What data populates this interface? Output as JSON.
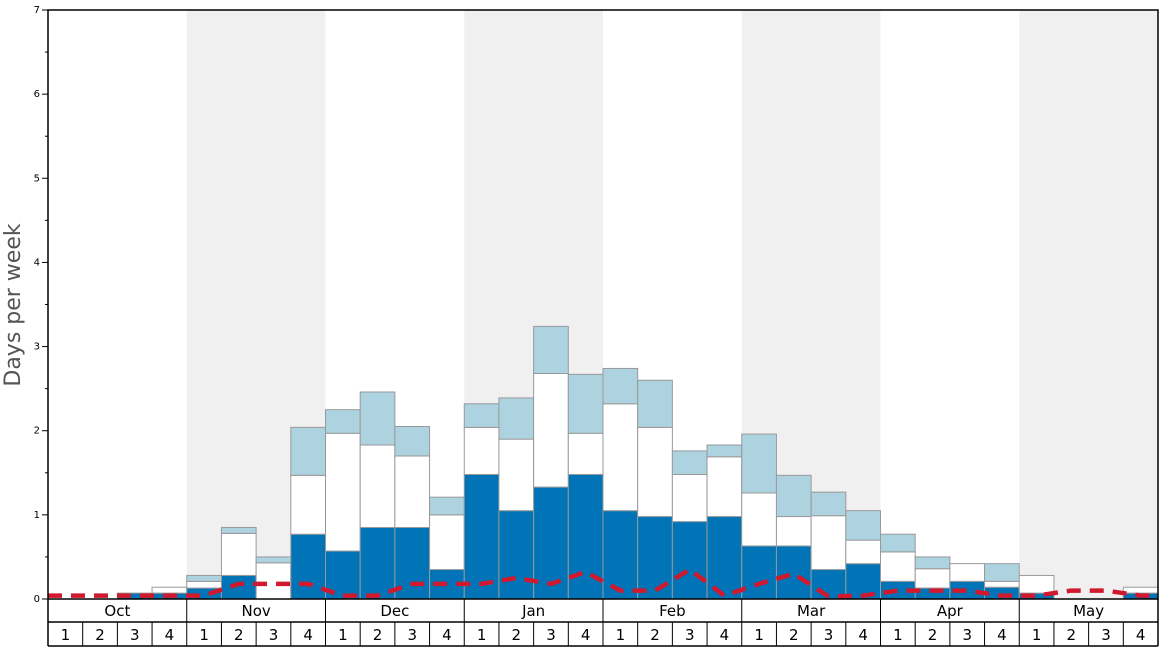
{
  "chart_data": {
    "type": "bar",
    "ylabel": "Days per week",
    "ylim": [
      0,
      7
    ],
    "yticks": [
      0,
      1,
      2,
      3,
      4,
      5,
      6,
      7
    ],
    "months": [
      "Oct",
      "Nov",
      "Dec",
      "Jan",
      "Feb",
      "Mar",
      "Apr",
      "May"
    ],
    "weeks": [
      "1",
      "2",
      "3",
      "4"
    ],
    "categories": [
      "Oct 1",
      "Oct 2",
      "Oct 3",
      "Oct 4",
      "Nov 1",
      "Nov 2",
      "Nov 3",
      "Nov 4",
      "Dec 1",
      "Dec 2",
      "Dec 3",
      "Dec 4",
      "Jan 1",
      "Jan 2",
      "Jan 3",
      "Jan 4",
      "Feb 1",
      "Feb 2",
      "Feb 3",
      "Feb 4",
      "Mar 1",
      "Mar 2",
      "Mar 3",
      "Mar 4",
      "Apr 1",
      "Apr 2",
      "Apr 3",
      "Apr 4",
      "May 1",
      "May 2",
      "May 3",
      "May 4"
    ],
    "series": [
      {
        "color": "#0074b7",
        "values": [
          0,
          0,
          0.07,
          0.07,
          0.13,
          0.28,
          0,
          0.77,
          0.57,
          0.85,
          0.85,
          0.35,
          1.48,
          1.05,
          1.33,
          1.48,
          1.05,
          0.98,
          0.92,
          0.98,
          0.63,
          0.63,
          0.35,
          0.42,
          0.21,
          0.13,
          0.21,
          0.14,
          0.07,
          0,
          0,
          0.07
        ]
      },
      {
        "color": "#ffffff",
        "values": [
          0,
          0,
          0,
          0.07,
          0.08,
          0.5,
          0.43,
          0.7,
          1.4,
          0.98,
          0.85,
          0.65,
          0.56,
          0.85,
          1.35,
          0.49,
          1.27,
          1.06,
          0.56,
          0.71,
          0.63,
          0.35,
          0.64,
          0.28,
          0.35,
          0.23,
          0.21,
          0.07,
          0.21,
          0,
          0,
          0.07
        ]
      },
      {
        "color": "#aed3e0",
        "values": [
          0,
          0,
          0,
          0,
          0.07,
          0.07,
          0.07,
          0.57,
          0.28,
          0.63,
          0.35,
          0.21,
          0.28,
          0.49,
          0.56,
          0.7,
          0.42,
          0.56,
          0.28,
          0.14,
          0.7,
          0.49,
          0.28,
          0.35,
          0.21,
          0.14,
          0,
          0.21,
          0,
          0,
          0,
          0
        ]
      }
    ],
    "line": {
      "color": "#d0182e",
      "style": "dashed",
      "values": [
        0.04,
        0.04,
        0.04,
        0.04,
        0.04,
        0.18,
        0.18,
        0.18,
        0.04,
        0.04,
        0.18,
        0.18,
        0.18,
        0.25,
        0.18,
        0.32,
        0.1,
        0.1,
        0.35,
        0.04,
        0.18,
        0.3,
        0.03,
        0.04,
        0.1,
        0.1,
        0.1,
        0.04,
        0.04,
        0.1,
        0.1,
        0.04
      ]
    },
    "shaded_months": [
      "Nov",
      "Jan",
      "Mar",
      "May"
    ],
    "shade_color": "#f0f0f0"
  }
}
